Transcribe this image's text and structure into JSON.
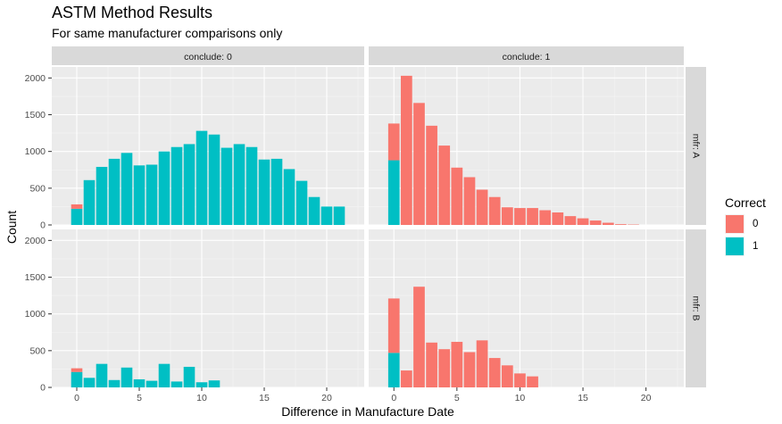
{
  "title": "ASTM Method Results",
  "subtitle": "For same manufacturer comparisons only",
  "chart_data": {
    "type": "bar",
    "stacked": true,
    "facet_cols": [
      "conclude: 0",
      "conclude: 1"
    ],
    "facet_rows": [
      "mfr: A",
      "mfr: B"
    ],
    "xlabel": "Difference in Manufacture Date",
    "ylabel": "Count",
    "xlim": [
      -2,
      23
    ],
    "ylim": [
      0,
      2150
    ],
    "x_ticks": [
      0,
      5,
      10,
      15,
      20
    ],
    "y_ticks": [
      0,
      500,
      1000,
      1500,
      2000
    ],
    "grid": true,
    "legend": {
      "title": "Correct",
      "position": "right",
      "entries": [
        {
          "label": "0",
          "color": "#F8766D"
        },
        {
          "label": "1",
          "color": "#00BFC4"
        }
      ]
    },
    "panels": [
      {
        "col": 0,
        "row": 0,
        "x": [
          0,
          1,
          2,
          3,
          4,
          5,
          6,
          7,
          8,
          9,
          10,
          11,
          12,
          13,
          14,
          15,
          16,
          17,
          18,
          19,
          20,
          21
        ],
        "correct_0": [
          60,
          0,
          0,
          0,
          0,
          0,
          0,
          0,
          0,
          0,
          0,
          0,
          0,
          0,
          0,
          0,
          0,
          0,
          0,
          0,
          0,
          0
        ],
        "correct_1": [
          220,
          610,
          790,
          900,
          980,
          810,
          820,
          1000,
          1060,
          1100,
          1280,
          1230,
          1050,
          1100,
          1060,
          890,
          900,
          760,
          600,
          380,
          250,
          250
        ]
      },
      {
        "col": 1,
        "row": 0,
        "x": [
          0,
          1,
          2,
          3,
          4,
          5,
          6,
          7,
          8,
          9,
          10,
          11,
          12,
          13,
          14,
          15,
          16,
          17,
          18,
          19,
          20,
          21
        ],
        "correct_0": [
          500,
          2030,
          1660,
          1350,
          1080,
          780,
          650,
          480,
          380,
          240,
          230,
          230,
          200,
          170,
          120,
          90,
          60,
          30,
          10,
          5,
          0,
          0
        ],
        "correct_1": [
          880,
          0,
          0,
          0,
          0,
          0,
          0,
          0,
          0,
          0,
          0,
          0,
          0,
          0,
          0,
          0,
          0,
          0,
          0,
          0,
          0,
          0
        ]
      },
      {
        "col": 0,
        "row": 1,
        "x": [
          0,
          1,
          2,
          3,
          4,
          5,
          6,
          7,
          8,
          9,
          10,
          11,
          12,
          13,
          14,
          15,
          16,
          17,
          18,
          19,
          20,
          21
        ],
        "correct_0": [
          50,
          0,
          0,
          0,
          0,
          0,
          0,
          0,
          0,
          0,
          0,
          0,
          0,
          0,
          0,
          0,
          0,
          0,
          0,
          0,
          0,
          0
        ],
        "correct_1": [
          210,
          130,
          320,
          100,
          270,
          110,
          90,
          320,
          80,
          280,
          70,
          95,
          0,
          0,
          0,
          0,
          0,
          0,
          0,
          0,
          0,
          0
        ]
      },
      {
        "col": 1,
        "row": 1,
        "x": [
          0,
          1,
          2,
          3,
          4,
          5,
          6,
          7,
          8,
          9,
          10,
          11,
          12,
          13,
          14,
          15,
          16,
          17,
          18,
          19,
          20,
          21
        ],
        "correct_0": [
          740,
          230,
          1370,
          610,
          520,
          620,
          480,
          640,
          400,
          300,
          190,
          150,
          0,
          0,
          0,
          0,
          0,
          0,
          0,
          0,
          0,
          0
        ],
        "correct_1": [
          470,
          0,
          0,
          0,
          0,
          0,
          0,
          0,
          0,
          0,
          0,
          0,
          0,
          0,
          0,
          0,
          0,
          0,
          0,
          0,
          0,
          0
        ]
      }
    ]
  }
}
